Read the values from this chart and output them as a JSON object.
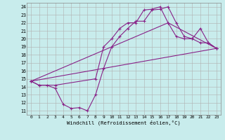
{
  "xlabel": "Windchill (Refroidissement éolien,°C)",
  "bg_color": "#c8ecec",
  "line_color": "#882288",
  "grid_color": "#b0b0b0",
  "xlim": [
    -0.5,
    23.5
  ],
  "ylim": [
    10.5,
    24.5
  ],
  "xticks": [
    0,
    1,
    2,
    3,
    4,
    5,
    6,
    7,
    8,
    9,
    10,
    11,
    12,
    13,
    14,
    15,
    16,
    17,
    18,
    19,
    20,
    21,
    22,
    23
  ],
  "yticks": [
    11,
    12,
    13,
    14,
    15,
    16,
    17,
    18,
    19,
    20,
    21,
    22,
    23,
    24
  ],
  "line1_x": [
    0,
    1,
    2,
    3,
    4,
    5,
    6,
    7,
    8,
    9,
    10,
    11,
    12,
    13,
    14,
    15,
    16,
    17,
    18,
    19,
    20,
    21,
    22,
    23
  ],
  "line1_y": [
    14.7,
    14.2,
    14.2,
    13.8,
    11.8,
    11.3,
    11.4,
    11.0,
    13.0,
    16.3,
    19.0,
    20.3,
    21.3,
    22.2,
    22.2,
    23.6,
    23.7,
    24.0,
    22.0,
    20.3,
    20.0,
    19.5,
    19.5,
    18.8
  ],
  "line2_x": [
    0,
    1,
    3,
    8,
    9,
    10,
    11,
    12,
    13,
    14,
    15,
    16,
    17,
    18,
    19,
    20,
    21,
    22,
    23
  ],
  "line2_y": [
    14.7,
    14.2,
    14.2,
    15.0,
    19.0,
    20.0,
    21.3,
    22.0,
    22.0,
    23.6,
    23.7,
    24.0,
    22.0,
    20.3,
    20.0,
    20.0,
    21.3,
    19.5,
    18.8
  ],
  "line3_x": [
    0,
    23
  ],
  "line3_y": [
    14.7,
    18.8
  ],
  "line4_x": [
    0,
    17,
    23
  ],
  "line4_y": [
    14.7,
    22.0,
    18.8
  ]
}
